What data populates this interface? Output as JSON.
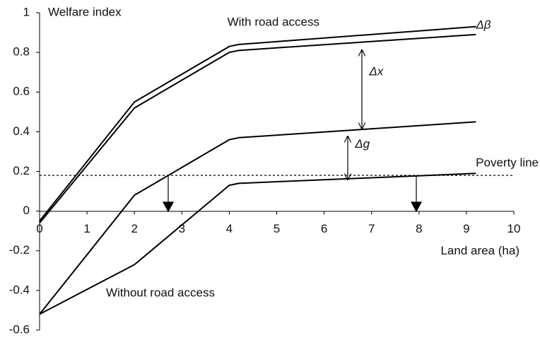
{
  "chart_data": {
    "type": "line",
    "xlabel": "Land area (ha)",
    "ylabel": "Welfare index",
    "xlim": [
      0,
      10
    ],
    "ylim": [
      -0.6,
      1
    ],
    "xticks": [
      0,
      1,
      2,
      3,
      4,
      5,
      6,
      7,
      8,
      9,
      10
    ],
    "yticks": [
      -0.6,
      -0.4,
      -0.2,
      0,
      0.2,
      0.4,
      0.6,
      0.8,
      1
    ],
    "series": [
      {
        "color": "#000000",
        "x": [
          0,
          2,
          4,
          4.2,
          9.2
        ],
        "values": [
          -0.05,
          0.55,
          0.83,
          0.84,
          0.93
        ]
      },
      {
        "color": "#000000",
        "x": [
          0,
          2,
          4,
          4.2,
          9.2
        ],
        "values": [
          -0.06,
          0.52,
          0.8,
          0.81,
          0.89
        ]
      },
      {
        "color": "#000000",
        "x": [
          0,
          2,
          4,
          4.2,
          9.2
        ],
        "values": [
          -0.52,
          0.08,
          0.36,
          0.37,
          0.45
        ]
      },
      {
        "color": "#000000",
        "x": [
          0,
          2,
          2.3,
          4,
          4.2,
          9.2
        ],
        "values": [
          -0.52,
          -0.27,
          -0.21,
          0.13,
          0.14,
          0.19
        ]
      }
    ],
    "poverty_line": {
      "label": "Poverty line",
      "value": 0.18
    },
    "annotations": [
      {
        "text": "With road access",
        "x": 4.93,
        "y": 0.95
      },
      {
        "text": "Without road access",
        "x": 1.4,
        "y": -0.415
      },
      {
        "text": "Δβ",
        "x": 9.2,
        "y": 0.935
      },
      {
        "text": "Δx",
        "x": 6.95,
        "y": 0.7
      },
      {
        "text": "Δg",
        "x": 6.65,
        "y": 0.335
      }
    ]
  }
}
